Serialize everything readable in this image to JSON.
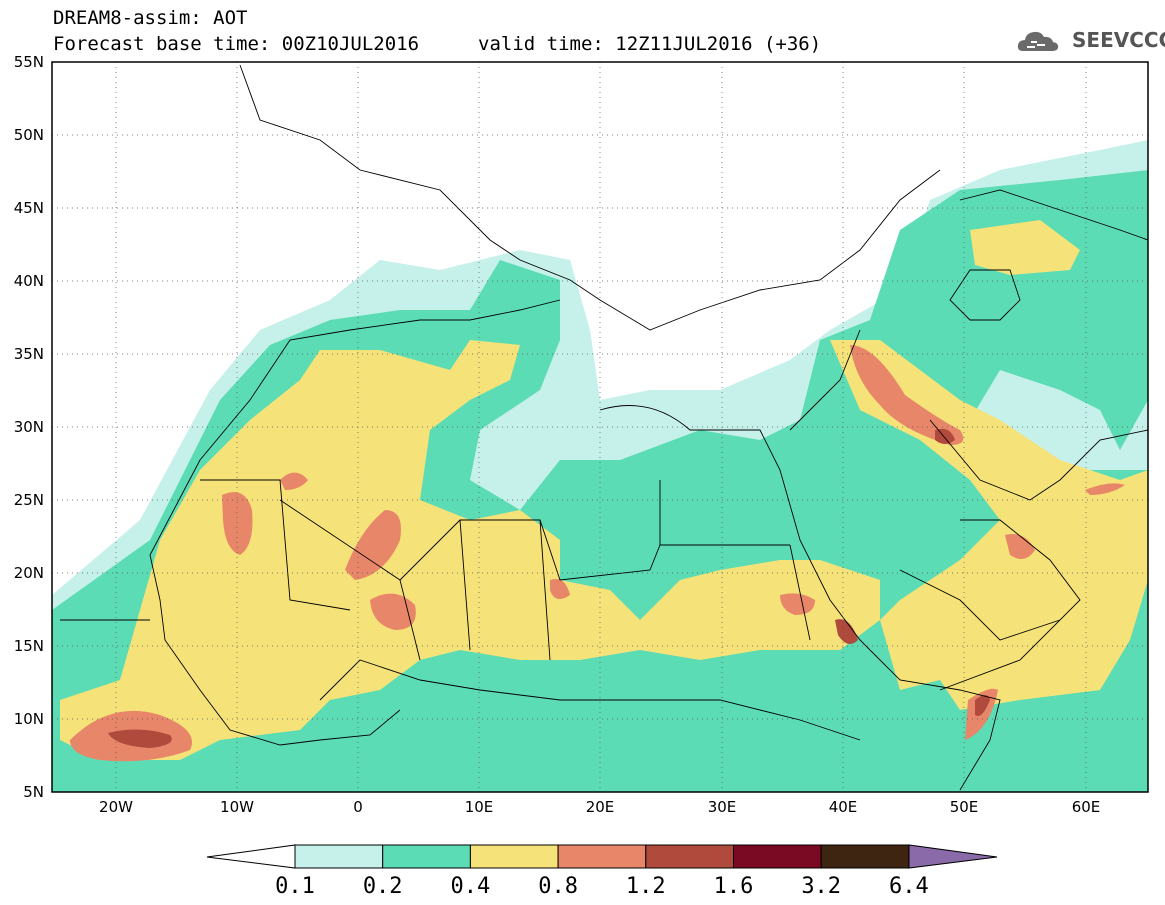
{
  "header": {
    "title": "DREAM8-assim: AOT",
    "base_time": "Forecast base time: 00Z10JUL2016",
    "valid_time": "valid time: 12Z11JUL2016 (+36)"
  },
  "logo": {
    "text": "SEEVCCC",
    "icon": "cloud-icon"
  },
  "map": {
    "variable": "AOT",
    "lon_range": [
      -25,
      65
    ],
    "lat_range": [
      5,
      55
    ],
    "lon_ticks": [
      "20W",
      "10W",
      "0",
      "10E",
      "20E",
      "30E",
      "40E",
      "50E",
      "60E"
    ],
    "lat_ticks": [
      "5N",
      "10N",
      "15N",
      "20N",
      "25N",
      "30N",
      "35N",
      "40N",
      "45N",
      "50N",
      "55N"
    ],
    "grid": "dotted",
    "regions": [
      "Sahara dust plume 0.4-0.8 across northwest Africa",
      "Peak 1.6-3.2 off West Africa near 17W 8N",
      "High values 1.2-1.6 over Mesopotamia and Persian Gulf",
      "Values 1.2-1.6 over Red Sea and Horn of Africa"
    ]
  },
  "colorbar": {
    "levels": [
      "0.1",
      "0.2",
      "0.4",
      "0.8",
      "1.2",
      "1.6",
      "3.2",
      "6.4"
    ],
    "colors": [
      "#c6f0ea",
      "#5cdcb4",
      "#f5e278",
      "#e8866a",
      "#b04a3c",
      "#7a0a24",
      "#3e2512",
      "#8a6aa8"
    ],
    "under_color": "#ffffff"
  }
}
